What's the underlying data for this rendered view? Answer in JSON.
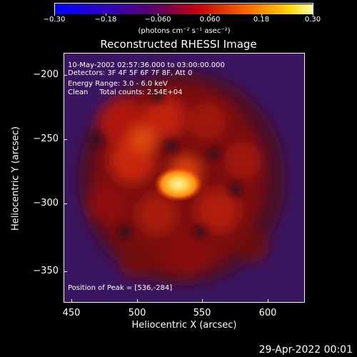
{
  "colorbar": {
    "ticks": [
      "−0.30",
      "−0.18",
      "−0.060",
      "0.060",
      "0.18",
      "0.30"
    ],
    "unit_text": "(photons cm⁻² s⁻¹ asec⁻²)"
  },
  "title": "Reconstructed RHESSI Image",
  "annotations": {
    "time": "10-May-2002 02:57:36.000 to 03:00:00.000",
    "detectors": "Detectors: 3F 4F 5F 6F 7F 8F, Att 0",
    "energy": "Energy Range: 3.0 - 6.0 keV",
    "clean": "Clean     Total counts: 2.54E+04",
    "peak": "Position of Peak = [536,-284]"
  },
  "axes": {
    "x_label": "Heliocentric X (arcsec)",
    "y_label": "Heliocentric Y (arcsec)",
    "x_ticks": [
      "450",
      "500",
      "550",
      "600"
    ],
    "y_ticks": [
      "−200",
      "−250",
      "−300",
      "−350"
    ]
  },
  "footer_date": "29-Apr-2022 00:01",
  "colors": {
    "bg": "#000000",
    "outer": "#3a1560",
    "peak": "#fff2a0"
  }
}
